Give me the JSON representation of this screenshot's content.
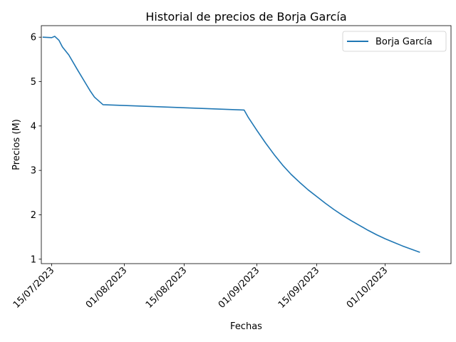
{
  "chart_data": {
    "type": "line",
    "title": "Historial de precios de Borja García",
    "xlabel": "Fechas",
    "ylabel": "Precios (M)",
    "x_start_date": "2023-07-13",
    "x_unit": "days since 13/07/2023",
    "xlim": [
      -0.43,
      95.4
    ],
    "ylim": [
      0.9,
      6.26
    ],
    "xticks": [
      {
        "value": 2,
        "label": "15/07/2023"
      },
      {
        "value": 19,
        "label": "01/08/2023"
      },
      {
        "value": 33,
        "label": "15/08/2023"
      },
      {
        "value": 50,
        "label": "01/09/2023"
      },
      {
        "value": 64,
        "label": "15/09/2023"
      },
      {
        "value": 80,
        "label": "01/10/2023"
      }
    ],
    "yticks": [
      {
        "value": 1,
        "label": "1"
      },
      {
        "value": 2,
        "label": "2"
      },
      {
        "value": 3,
        "label": "3"
      },
      {
        "value": 4,
        "label": "4"
      },
      {
        "value": 5,
        "label": "5"
      },
      {
        "value": 6,
        "label": "6"
      }
    ],
    "legend_position": "top-right",
    "series": [
      {
        "name": "Borja García",
        "color": "#1f77b4",
        "x": [
          0,
          2,
          2.7,
          3.7,
          4.5,
          6,
          8,
          10,
          11,
          12,
          14,
          47,
          48,
          50,
          52,
          54,
          56,
          58,
          60,
          62,
          64,
          66,
          68,
          70,
          72,
          74,
          76,
          78,
          80,
          82,
          84,
          86,
          88
        ],
        "y": [
          6.0,
          5.99,
          6.02,
          5.93,
          5.78,
          5.6,
          5.27,
          4.95,
          4.79,
          4.65,
          4.48,
          4.36,
          4.19,
          3.9,
          3.62,
          3.36,
          3.12,
          2.91,
          2.73,
          2.56,
          2.41,
          2.26,
          2.12,
          1.99,
          1.87,
          1.76,
          1.65,
          1.55,
          1.46,
          1.38,
          1.3,
          1.23,
          1.16
        ]
      }
    ]
  }
}
